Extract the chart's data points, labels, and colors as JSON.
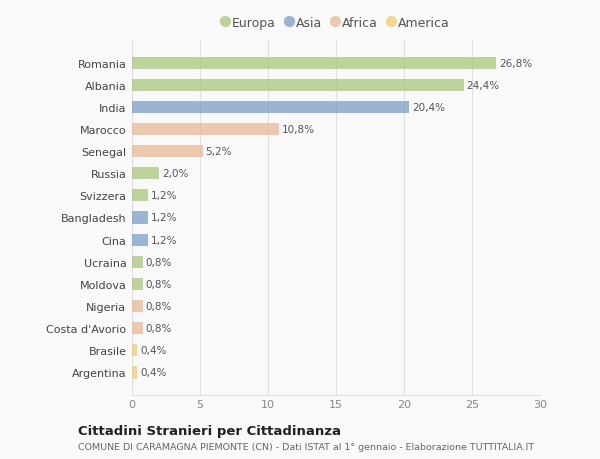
{
  "countries": [
    "Romania",
    "Albania",
    "India",
    "Marocco",
    "Senegal",
    "Russia",
    "Svizzera",
    "Bangladesh",
    "Cina",
    "Ucraina",
    "Moldova",
    "Nigeria",
    "Costa d'Avorio",
    "Brasile",
    "Argentina"
  ],
  "values": [
    26.8,
    24.4,
    20.4,
    10.8,
    5.2,
    2.0,
    1.2,
    1.2,
    1.2,
    0.8,
    0.8,
    0.8,
    0.8,
    0.4,
    0.4
  ],
  "labels": [
    "26,8%",
    "24,4%",
    "20,4%",
    "10,8%",
    "5,2%",
    "2,0%",
    "1,2%",
    "1,2%",
    "1,2%",
    "0,8%",
    "0,8%",
    "0,8%",
    "0,8%",
    "0,4%",
    "0,4%"
  ],
  "continents": [
    "Europa",
    "Europa",
    "Asia",
    "Africa",
    "Africa",
    "Europa",
    "Europa",
    "Asia",
    "Asia",
    "Europa",
    "Europa",
    "Africa",
    "Africa",
    "America",
    "America"
  ],
  "colors": {
    "Europa": "#a8c87a",
    "Asia": "#7a9dc8",
    "Africa": "#e8b896",
    "America": "#f0cc6a"
  },
  "xlim": [
    0,
    30
  ],
  "xticks": [
    0,
    5,
    10,
    15,
    20,
    25,
    30
  ],
  "title": "Cittadini Stranieri per Cittadinanza",
  "subtitle": "COMUNE DI CARAMAGNA PIEMONTE (CN) - Dati ISTAT al 1° gennaio - Elaborazione TUTTITALIA.IT",
  "bg_color": "#f9f9f9",
  "grid_color": "#e0e0e0",
  "bar_alpha": 0.75
}
